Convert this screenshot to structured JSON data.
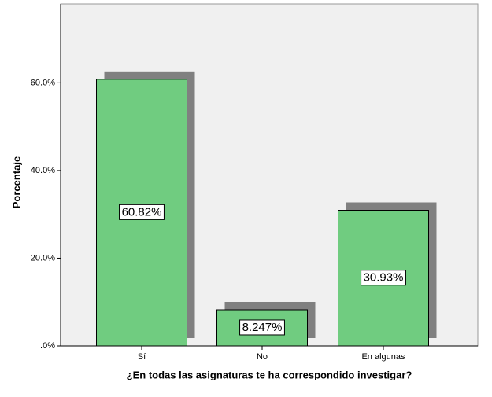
{
  "chart_data": {
    "type": "bar",
    "x_label": "¿En todas las asignaturas te ha correspondido investigar?",
    "y_label": "Porcentaje",
    "categories": [
      "Sí",
      "No",
      "En algunas"
    ],
    "values": [
      60.82,
      8.247,
      30.93
    ],
    "value_labels": [
      "60.82%",
      "8.247%",
      "30.93%"
    ],
    "color": "#70cc80",
    "ylim": [
      0,
      78
    ],
    "yticks": [
      {
        "value": 0,
        "label": ".0%"
      },
      {
        "value": 20,
        "label": "20.0%"
      },
      {
        "value": 40,
        "label": "40.0%"
      },
      {
        "value": 60,
        "label": "60.0%"
      }
    ]
  }
}
